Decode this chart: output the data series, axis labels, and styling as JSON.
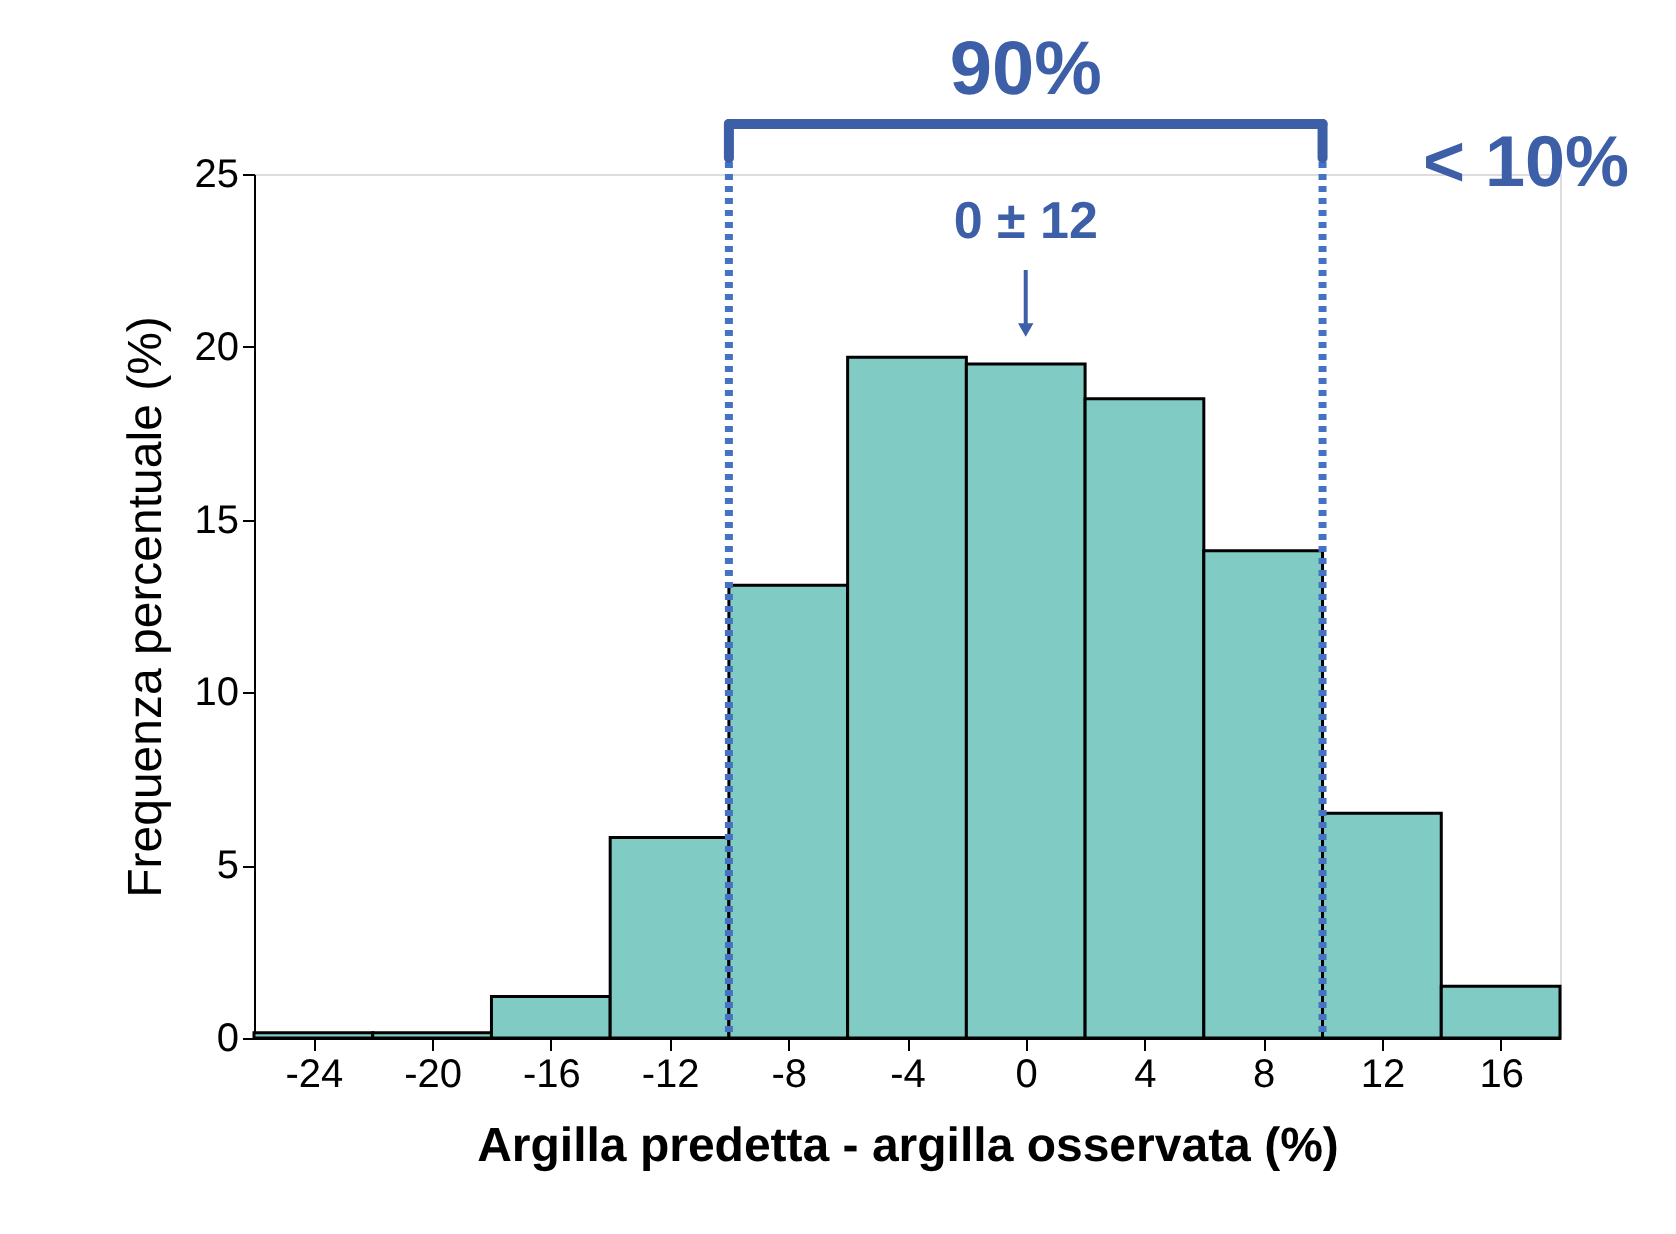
{
  "chart_data": {
    "type": "histogram",
    "xlabel": "Argilla predetta - argilla osservata (%)",
    "ylabel": "Frequenza percentuale (%)",
    "bins": [
      -26,
      -22,
      -18,
      -14,
      -10,
      -6,
      -2,
      2,
      6,
      10,
      14,
      18
    ],
    "values": [
      0.15,
      0.15,
      1.2,
      5.8,
      13.1,
      19.7,
      19.5,
      18.5,
      14.1,
      6.5,
      1.5
    ],
    "color": "#80cbc4",
    "xlim": [
      -26,
      18
    ],
    "xticks": [
      -24,
      -20,
      -16,
      -12,
      -8,
      -4,
      0,
      4,
      8,
      12,
      16
    ],
    "ylim": [
      0,
      25
    ],
    "yticks": [
      0,
      5,
      10,
      15,
      20,
      25
    ],
    "grid": false,
    "ref_lines": [
      {
        "axis": "x",
        "value": -10,
        "color": "#4472c4",
        "line_style": "dotted"
      },
      {
        "axis": "x",
        "value": 10,
        "color": "#4472c4",
        "line_style": "dotted"
      }
    ],
    "annotations": [
      "0 ± 12",
      "90%",
      "< 10%"
    ]
  }
}
